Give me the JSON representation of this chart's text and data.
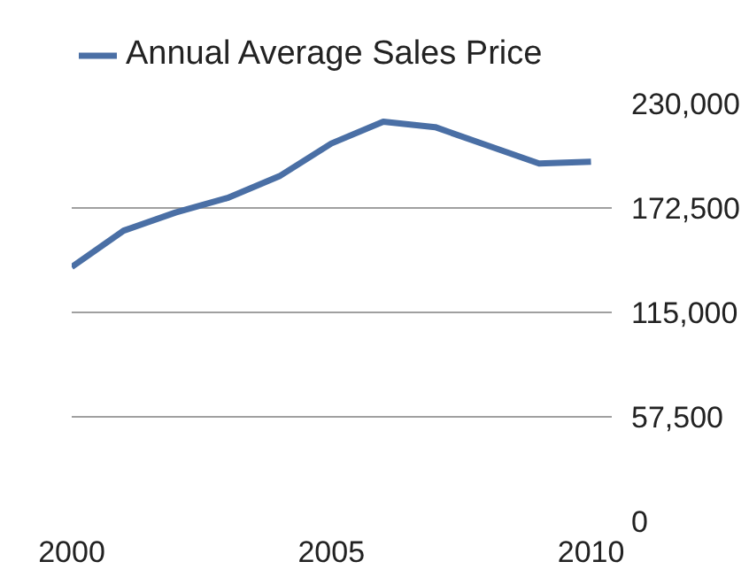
{
  "chart_data": {
    "type": "line",
    "x": [
      2000,
      2001,
      2002,
      2003,
      2004,
      2005,
      2006,
      2007,
      2008,
      2009,
      2010
    ],
    "series": [
      {
        "name": "Annual Average Sales Price",
        "color": "#4a6fa5",
        "values": [
          140000,
          160000,
          170000,
          178000,
          190000,
          208000,
          220000,
          217000,
          207000,
          197000,
          198000
        ]
      }
    ],
    "xlim": [
      2000,
      2010.4
    ],
    "xticks": [
      2000,
      2005,
      2010
    ],
    "ylim": [
      0,
      230000
    ],
    "yticks": [
      {
        "value": 0,
        "label": "0"
      },
      {
        "value": 57500,
        "label": "57,500"
      },
      {
        "value": 115000,
        "label": "115,000"
      },
      {
        "value": 172500,
        "label": "172,500"
      },
      {
        "value": 230000,
        "label": "230,000"
      }
    ],
    "grid": "y",
    "legend": "top",
    "marker": "none",
    "line_style": "solid"
  }
}
